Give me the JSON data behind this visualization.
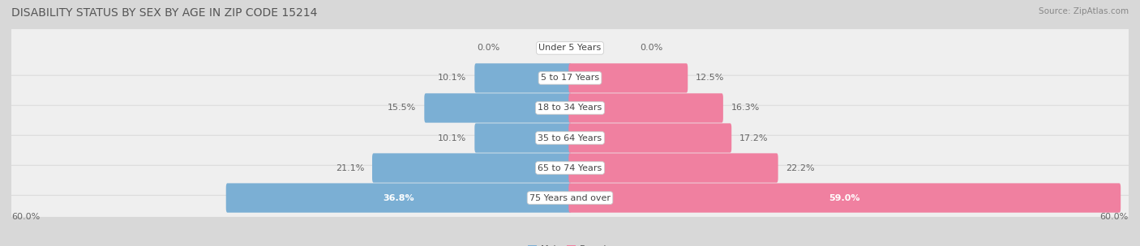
{
  "title": "DISABILITY STATUS BY SEX BY AGE IN ZIP CODE 15214",
  "source": "Source: ZipAtlas.com",
  "categories": [
    "Under 5 Years",
    "5 to 17 Years",
    "18 to 34 Years",
    "35 to 64 Years",
    "65 to 74 Years",
    "75 Years and over"
  ],
  "male_values": [
    0.0,
    10.1,
    15.5,
    10.1,
    21.1,
    36.8
  ],
  "female_values": [
    0.0,
    12.5,
    16.3,
    17.2,
    22.2,
    59.0
  ],
  "male_color": "#7bafd4",
  "female_color": "#f080a0",
  "male_color_light": "#c5ddf0",
  "female_color_light": "#f8c0d0",
  "max_val": 60.0,
  "title_color": "#555555",
  "title_fontsize": 10,
  "label_fontsize": 8,
  "value_fontsize": 8,
  "row_bg": "#e8e8e8",
  "gap_bg": "#d8d8d8"
}
